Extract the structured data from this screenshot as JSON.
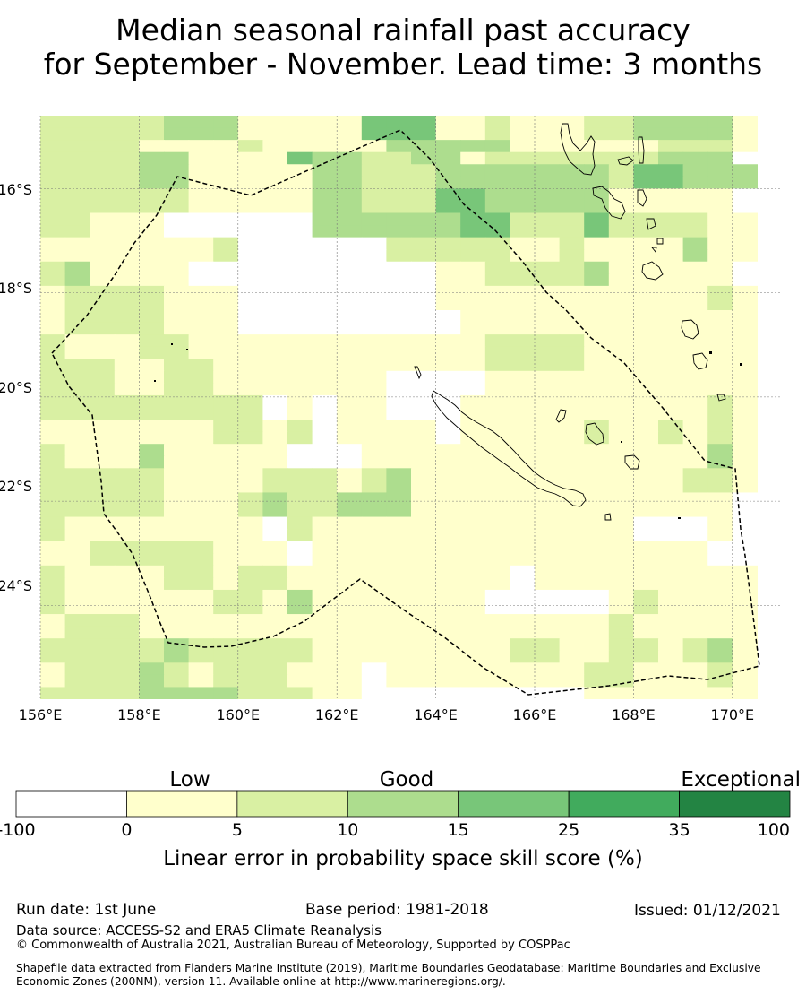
{
  "title": {
    "line1": "Median seasonal rainfall past accuracy",
    "line2": "for September - November. Lead time: 3 months"
  },
  "map": {
    "lon_ticks": [
      "156°E",
      "158°E",
      "160°E",
      "162°E",
      "164°E",
      "166°E",
      "168°E",
      "170°E"
    ],
    "lat_ticks": [
      "16°S",
      "18°S",
      "20°S",
      "22°S",
      "24°S"
    ],
    "lon_values": [
      156,
      158,
      160,
      162,
      164,
      166,
      168,
      170
    ],
    "lat_values": [
      -16,
      -18,
      -20,
      -22,
      -24
    ],
    "extent": {
      "lon_min": 156,
      "lon_max": 171,
      "lat_min": -25.8,
      "lat_max": -14.6
    },
    "grid_legend_classes": "0:<0 1:0-5 2:5-10 3:10-15 4:15-25 5:25-35 6:35-100",
    "grid": [
      "22222333111114441121112233331",
      "22222333111114441121112233331",
      "22221111211111333331111112221",
      "22223311114332233122222223330",
      "22223311111332223333333244333",
      "22223311111332223333333244333",
      "22222211111332224433333111110",
      "22222211111332224433333111110",
      "22111000000333333442224222211",
      "22111000000333333442224222211",
      "11111112000000222221121111311",
      "11111112000000222221121111311",
      "23111100000000001122223111110",
      "23111100000000001122223111110",
      "12222111000000001111111111121",
      "12222111000000001111111111121",
      "12222111000000000111111111111",
      "12222111000000000111111111111",
      "21112211111111111122221111111",
      "21112211111111111122221111111",
      "22211221111111111122221111111",
      "22211221111111000011111111111",
      "22211221111111000011111111111",
      "22222222201011000111111111121",
      "22222222201011000111111111121",
      "11111112212011110111112112121",
      "11111112212011110111112112121",
      "21113111110001111111111111131",
      "21113111110001111111111111131",
      "22222111122212311111111111221",
      "22222111122212311111111111221",
      "22222111232233311111111111110",
      "22222111232233311111111111110",
      "21111111102111111111111100010",
      "21111111102111111111111100010",
      "11222221110111111111111111100",
      "11222221110111111111111111100",
      "21111221221111111110111111111",
      "21111221221111111110111111111",
      "21111112213111111100000121111",
      "21111112213111111100000121111",
      "12221111111111111111111211111",
      "12221111111111111111111211111",
      "22222322222111111112211221231",
      "22222322222111111112211221231",
      "12223212221110111111112211121",
      "12223212221110111111112211121",
      "22223333222110000000001111111"
    ]
  },
  "colorbar": {
    "colors": [
      "#ffffff",
      "#ffffcc",
      "#d9f0a3",
      "#addd8e",
      "#78c679",
      "#41ab5d",
      "#238443"
    ],
    "ticks": [
      "-100",
      "0",
      "5",
      "10",
      "15",
      "25",
      "35",
      "100"
    ],
    "categories": {
      "low": "Low",
      "good": "Good",
      "exceptional": "Exceptional"
    },
    "label": "Linear error in probability space skill score (%)"
  },
  "footer": {
    "run_date": "Run date: 1st June",
    "base_period": "Base period: 1981-2018",
    "issued": "Issued: 01/12/2021",
    "data_source": "Data source: ACCESS-S2 and ERA5 Climate Reanalysis",
    "copyright": "© Commonwealth of Australia 2021, Australian Bureau of Meteorology, Supported by COSPPac",
    "shapefile": "Shapefile data extracted from Flanders Marine Institute (2019), Maritime Boundaries Geodatabase: Maritime Boundaries and Exclusive Economic Zones (200NM), version 11. Available online at http://www.marineregions.org/."
  }
}
